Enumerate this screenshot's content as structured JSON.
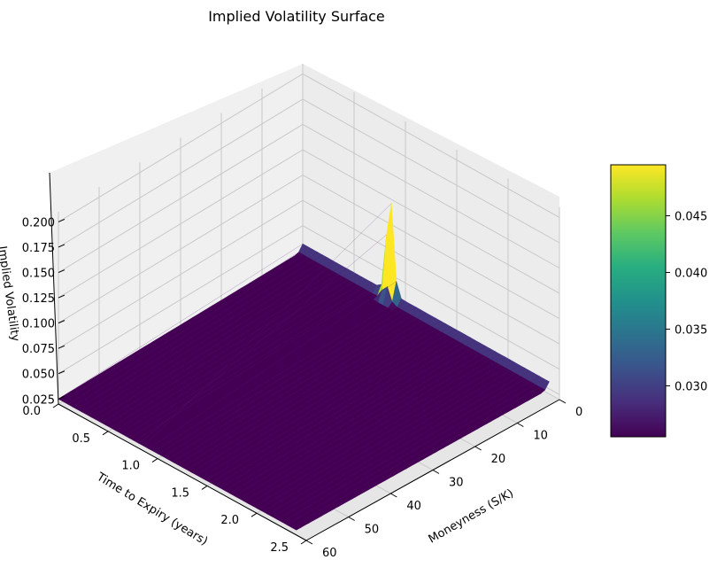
{
  "chart_data": {
    "type": "surface3d",
    "title": "Implied Volatility Surface",
    "xlabel": "Time to Expiry (years)",
    "ylabel": "Moneyness (S/K)",
    "zlabel": "Implied Volatility",
    "xlim": [
      0.0,
      2.5
    ],
    "ylim": [
      0,
      60
    ],
    "zlim": [
      0.02,
      0.21
    ],
    "x_ticks": [
      "0.0",
      "0.5",
      "1.0",
      "1.5",
      "2.0",
      "2.5"
    ],
    "y_ticks": [
      "0",
      "10",
      "20",
      "30",
      "40",
      "50",
      "60"
    ],
    "z_ticks": [
      "0.025",
      "0.050",
      "0.075",
      "0.100",
      "0.125",
      "0.150",
      "0.175",
      "0.200"
    ],
    "colormap": "viridis",
    "colorbar": {
      "min": 0.0255,
      "max": 0.0495,
      "ticks": [
        "0.030",
        "0.035",
        "0.040",
        "0.045"
      ]
    },
    "surface": {
      "base_level": 0.025,
      "back_edge_moneyness": 0,
      "back_edge_level": 0.032,
      "peak": {
        "time": 0.85,
        "moneyness": 0,
        "value": 0.13
      },
      "grid_time": 50,
      "grid_moneyness": 60
    },
    "grid": true
  }
}
